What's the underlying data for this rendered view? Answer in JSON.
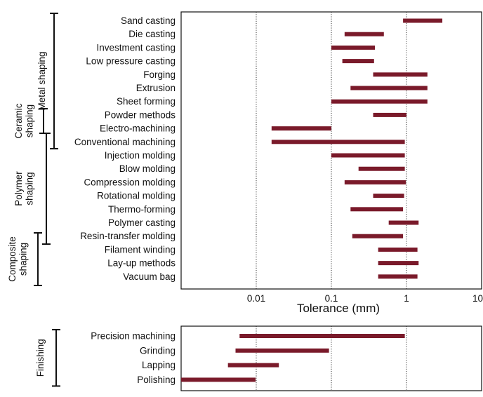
{
  "chart_data": {
    "type": "range-bar",
    "xlabel": "Tolerance (mm)",
    "x_scale": "log",
    "xlim": [
      0.001,
      10
    ],
    "x_ticks": [
      "0.01",
      "0.1",
      "1",
      "10"
    ],
    "bar_color": "#7a1a2a",
    "grid": "dotted vertical at decades",
    "panels": [
      {
        "name": "main",
        "processes": [
          {
            "label": "Sand casting",
            "low": 0.9,
            "high": 3.0
          },
          {
            "label": "Die casting",
            "low": 0.15,
            "high": 0.5
          },
          {
            "label": "Investment casting",
            "low": 0.1,
            "high": 0.38
          },
          {
            "label": "Low pressure casting",
            "low": 0.14,
            "high": 0.37
          },
          {
            "label": "Forging",
            "low": 0.36,
            "high": 1.9
          },
          {
            "label": "Extrusion",
            "low": 0.18,
            "high": 1.9
          },
          {
            "label": "Sheet forming",
            "low": 0.1,
            "high": 1.9
          },
          {
            "label": "Powder methods",
            "low": 0.36,
            "high": 1.0
          },
          {
            "label": "Electro-machining",
            "low": 0.016,
            "high": 0.1
          },
          {
            "label": "Conventional machining",
            "low": 0.016,
            "high": 0.95
          },
          {
            "label": "Injection molding",
            "low": 0.1,
            "high": 0.95
          },
          {
            "label": "Blow molding",
            "low": 0.23,
            "high": 0.95
          },
          {
            "label": "Compression molding",
            "low": 0.15,
            "high": 0.98
          },
          {
            "label": "Rotational molding",
            "low": 0.36,
            "high": 0.93
          },
          {
            "label": "Thermo-forming",
            "low": 0.18,
            "high": 0.9
          },
          {
            "label": "Polymer casting",
            "low": 0.58,
            "high": 1.45
          },
          {
            "label": "Resin-transfer molding",
            "low": 0.19,
            "high": 0.9
          },
          {
            "label": "Filament winding",
            "low": 0.42,
            "high": 1.4
          },
          {
            "label": "Lay-up methods",
            "low": 0.42,
            "high": 1.45
          },
          {
            "label": "Vacuum bag",
            "low": 0.42,
            "high": 1.4
          }
        ],
        "groups": [
          {
            "name": "Metal shaping",
            "from": 0,
            "to": 9
          },
          {
            "name": "Ceramic shaping",
            "from": 7,
            "to": 9
          },
          {
            "name": "Polymer shaping",
            "from": 9,
            "to": 16
          },
          {
            "name": "Composite shaping",
            "from": 16,
            "to": 19
          }
        ]
      },
      {
        "name": "finishing",
        "processes": [
          {
            "label": "Precision machining",
            "low": 0.006,
            "high": 0.95
          },
          {
            "label": "Grinding",
            "low": 0.0053,
            "high": 0.093
          },
          {
            "label": "Lapping",
            "low": 0.0042,
            "high": 0.02
          },
          {
            "label": "Polishing",
            "low": 0.001,
            "high": 0.0098
          }
        ],
        "groups": [
          {
            "name": "Finishing",
            "from": 0,
            "to": 3
          }
        ]
      }
    ]
  }
}
